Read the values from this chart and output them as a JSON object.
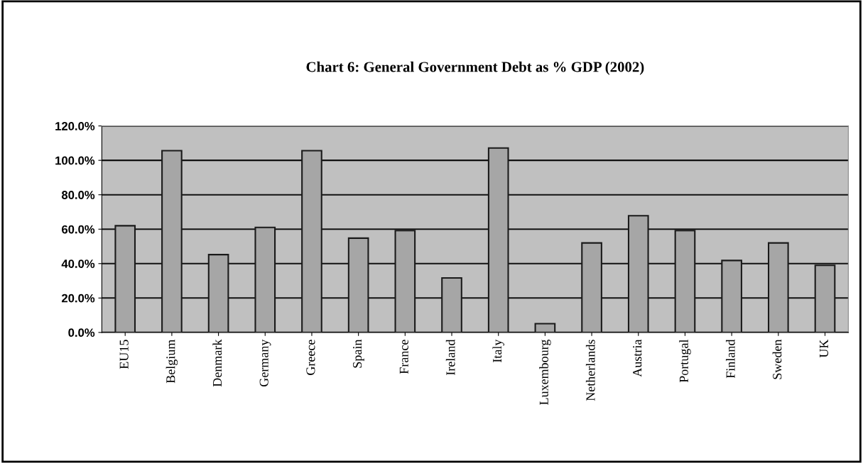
{
  "chart_data": {
    "type": "bar",
    "title": "Chart 6: General Government Debt as % GDP (2002)",
    "categories": [
      "EU15",
      "Belgium",
      "Denmark",
      "Germany",
      "Greece",
      "Spain",
      "France",
      "Ireland",
      "Italy",
      "Luxembourg",
      "Netherlands",
      "Austria",
      "Portugal",
      "Finland",
      "Sweden",
      "UK"
    ],
    "values": [
      62.0,
      105.6,
      45.2,
      61.0,
      105.6,
      54.8,
      59.2,
      31.7,
      107.2,
      5.1,
      52.0,
      67.8,
      59.2,
      41.8,
      52.0,
      39.0
    ],
    "color": "#a6a6a6",
    "ylim": [
      0,
      120
    ],
    "yticks": [
      {
        "value": 0,
        "label": "0.0%"
      },
      {
        "value": 20,
        "label": "20.0%"
      },
      {
        "value": 40,
        "label": "40.0%"
      },
      {
        "value": 60,
        "label": "60.0%"
      },
      {
        "value": 80,
        "label": "80.0%"
      },
      {
        "value": 100,
        "label": "100.0%"
      },
      {
        "value": 120,
        "label": "120.0%"
      }
    ],
    "grid": "y"
  }
}
